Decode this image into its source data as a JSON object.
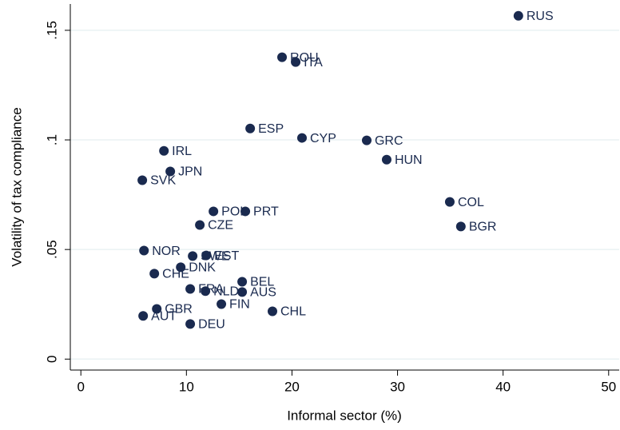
{
  "chart_data": {
    "type": "scatter",
    "xlabel": "Informal sector (%)",
    "ylabel": "Volatility of tax compliance",
    "labels": [
      "RUS",
      "ROU",
      "ITA",
      "ESP",
      "CYP",
      "GRC",
      "HUN",
      "IRL",
      "JPN",
      "SVK",
      "COL",
      "BGR",
      "POL",
      "PRT",
      "CZE",
      "NOR",
      "SWE",
      "EST",
      "DNK",
      "CHE",
      "BEL",
      "FRA",
      "NLD",
      "AUS",
      "FIN",
      "CHL",
      "GBR",
      "AUT",
      "DEU"
    ],
    "x": [
      41.45,
      19.06,
      20.35,
      16.04,
      20.95,
      27.08,
      28.97,
      7.87,
      8.47,
      5.82,
      34.95,
      36.0,
      12.56,
      15.58,
      11.27,
      5.98,
      10.59,
      11.88,
      9.46,
      6.96,
      15.28,
      10.36,
      11.8,
      15.28,
      13.31,
      18.15,
      7.19,
      5.9,
      10.36
    ],
    "values": [
      0.1566,
      0.1377,
      0.1355,
      0.1052,
      0.1009,
      0.0998,
      0.091,
      0.095,
      0.0856,
      0.0816,
      0.0717,
      0.0605,
      0.0674,
      0.0674,
      0.0612,
      0.0495,
      0.047,
      0.0473,
      0.0419,
      0.039,
      0.0353,
      0.032,
      0.031,
      0.0306,
      0.0251,
      0.0218,
      0.0229,
      0.0197,
      0.016
    ],
    "color": "#1a2a4f",
    "xlim": [
      -1,
      51
    ],
    "ylim": [
      -0.005,
      0.162
    ],
    "xticks": [
      0,
      10,
      20,
      30,
      40,
      50
    ],
    "yticks": [
      0,
      {
        "value": 0.05,
        "label": ".05"
      },
      {
        "value": 0.1,
        "label": ".1"
      },
      {
        "value": 0.15,
        "label": ".15"
      }
    ],
    "grid": true
  }
}
